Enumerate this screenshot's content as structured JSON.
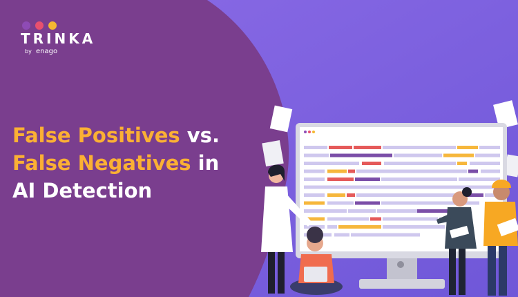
{
  "logo": {
    "name": "TRINKA",
    "by": "by",
    "brand": "enago"
  },
  "headline": {
    "lines": [
      {
        "highlight": "False Positives",
        "rest": "vs."
      },
      {
        "highlight": "False Negatives",
        "rest": "in"
      },
      {
        "rest": "AI Detection"
      }
    ]
  }
}
